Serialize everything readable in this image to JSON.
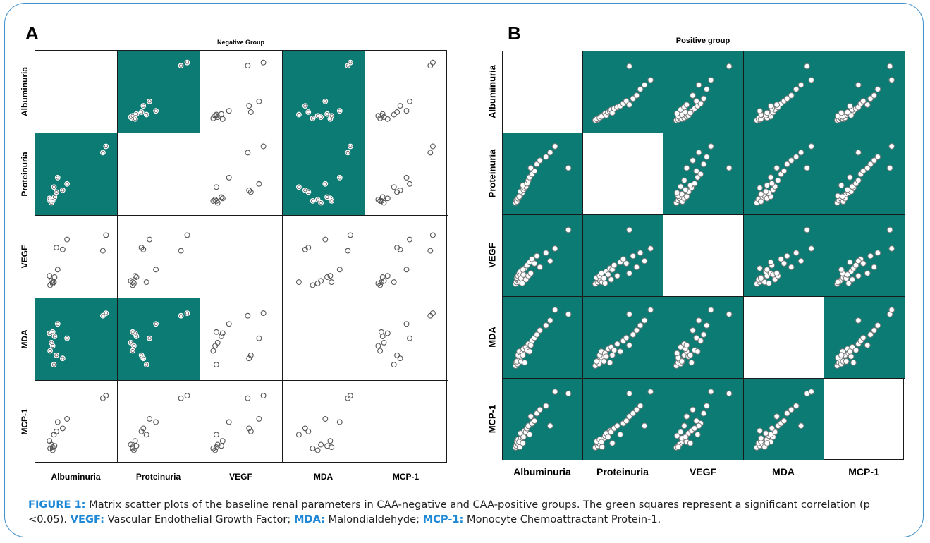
{
  "variables": [
    "Albuminuria",
    "Proteinuria",
    "VEGF",
    "MDA",
    "MCP-1"
  ],
  "colors": {
    "significant_cell": "#0b7b73",
    "frame": "#3e8fcc",
    "caption_highlight": "#1e88d6"
  },
  "caption": {
    "label": "FIGURE 1:",
    "text": "Matrix scatter plots of the baseline renal parameters in CAA-negative and CAA-positive groups. The green squares represent a significant correlation (p <0.05).",
    "abbr1": "VEGF:",
    "def1": "Vascular Endothelial Growth Factor;",
    "abbr2": "MDA:",
    "def2": "Malondialdehyde;",
    "abbr3": "MCP-1:",
    "def3": "Monocyte Chemoattractant Protein-1."
  },
  "chart_data": [
    {
      "type": "scatter",
      "panel": "A",
      "title": "Negative Group",
      "variables": [
        "Albuminuria",
        "Proteinuria",
        "VEGF",
        "MDA",
        "MCP-1"
      ],
      "significant_pairs": [
        [
          "Albuminuria",
          "Proteinuria"
        ],
        [
          "Albuminuria",
          "MDA"
        ],
        [
          "Proteinuria",
          "MDA"
        ]
      ],
      "grid": false,
      "observations": [
        {
          "Albuminuria": 0.08,
          "Proteinuria": 0.08,
          "VEGF": 0.05,
          "MDA": 0.32,
          "MCP-1": 0.08
        },
        {
          "Albuminuria": 0.1,
          "Proteinuria": 0.05,
          "VEGF": 0.12,
          "MDA": 0.45,
          "MCP-1": 0.14
        },
        {
          "Albuminuria": 0.12,
          "Proteinuria": 0.1,
          "VEGF": 0.08,
          "MDA": 0.4,
          "MCP-1": 0.05
        },
        {
          "Albuminuria": 0.07,
          "Proteinuria": 0.12,
          "VEGF": 0.2,
          "MDA": 0.6,
          "MCP-1": 0.2
        },
        {
          "Albuminuria": 0.15,
          "Proteinuria": 0.14,
          "VEGF": 0.18,
          "MDA": 0.55,
          "MCP-1": 0.12
        },
        {
          "Albuminuria": 0.12,
          "Proteinuria": 0.08,
          "VEGF": 0.1,
          "MDA": 0.62,
          "MCP-1": 0.1
        },
        {
          "Albuminuria": 0.18,
          "Proteinuria": 0.22,
          "VEGF": 0.65,
          "MDA": 0.25,
          "MCP-1": 0.35
        },
        {
          "Albuminuria": 0.28,
          "Proteinuria": 0.25,
          "VEGF": 0.62,
          "MDA": 0.2,
          "MCP-1": 0.4
        },
        {
          "Albuminuria": 0.14,
          "Proteinuria": 0.3,
          "VEGF": 0.1,
          "MDA": 0.1,
          "MCP-1": 0.3
        },
        {
          "Albuminuria": 0.35,
          "Proteinuria": 0.35,
          "VEGF": 0.78,
          "MDA": 0.52,
          "MCP-1": 0.55
        },
        {
          "Albuminuria": 0.2,
          "Proteinuria": 0.45,
          "VEGF": 0.3,
          "MDA": 0.75,
          "MCP-1": 0.5
        },
        {
          "Albuminuria": 0.92,
          "Proteinuria": 0.85,
          "VEGF": 0.6,
          "MDA": 0.88,
          "MCP-1": 0.88
        },
        {
          "Albuminuria": 0.97,
          "Proteinuria": 0.95,
          "VEGF": 0.85,
          "MDA": 0.92,
          "MCP-1": 0.92
        }
      ]
    },
    {
      "type": "scatter",
      "panel": "B",
      "title": "Positive group",
      "variables": [
        "Albuminuria",
        "Proteinuria",
        "VEGF",
        "MDA",
        "MCP-1"
      ],
      "significant_pairs": [
        [
          "Albuminuria",
          "Proteinuria"
        ],
        [
          "Albuminuria",
          "VEGF"
        ],
        [
          "Albuminuria",
          "MDA"
        ],
        [
          "Albuminuria",
          "MCP-1"
        ],
        [
          "Proteinuria",
          "VEGF"
        ],
        [
          "Proteinuria",
          "MDA"
        ],
        [
          "Proteinuria",
          "MCP-1"
        ],
        [
          "VEGF",
          "MDA"
        ],
        [
          "VEGF",
          "MCP-1"
        ],
        [
          "MDA",
          "MCP-1"
        ]
      ],
      "grid": false,
      "observations": [
        {
          "Albuminuria": 0.05,
          "Proteinuria": 0.04,
          "VEGF": 0.05,
          "MDA": 0.05,
          "MCP-1": 0.05
        },
        {
          "Albuminuria": 0.06,
          "Proteinuria": 0.08,
          "VEGF": 0.08,
          "MDA": 0.1,
          "MCP-1": 0.08
        },
        {
          "Albuminuria": 0.08,
          "Proteinuria": 0.1,
          "VEGF": 0.12,
          "MDA": 0.08,
          "MCP-1": 0.12
        },
        {
          "Albuminuria": 0.1,
          "Proteinuria": 0.12,
          "VEGF": 0.1,
          "MDA": 0.15,
          "MCP-1": 0.1
        },
        {
          "Albuminuria": 0.07,
          "Proteinuria": 0.06,
          "VEGF": 0.15,
          "MDA": 0.12,
          "MCP-1": 0.15
        },
        {
          "Albuminuria": 0.12,
          "Proteinuria": 0.15,
          "VEGF": 0.08,
          "MDA": 0.18,
          "MCP-1": 0.06
        },
        {
          "Albuminuria": 0.09,
          "Proteinuria": 0.11,
          "VEGF": 0.18,
          "MDA": 0.22,
          "MCP-1": 0.18
        },
        {
          "Albuminuria": 0.14,
          "Proteinuria": 0.18,
          "VEGF": 0.14,
          "MDA": 0.12,
          "MCP-1": 0.2
        },
        {
          "Albuminuria": 0.11,
          "Proteinuria": 0.14,
          "VEGF": 0.22,
          "MDA": 0.28,
          "MCP-1": 0.14
        },
        {
          "Albuminuria": 0.16,
          "Proteinuria": 0.2,
          "VEGF": 0.06,
          "MDA": 0.25,
          "MCP-1": 0.24
        },
        {
          "Albuminuria": 0.13,
          "Proteinuria": 0.22,
          "VEGF": 0.25,
          "MDA": 0.2,
          "MCP-1": 0.28
        },
        {
          "Albuminuria": 0.18,
          "Proteinuria": 0.25,
          "VEGF": 0.2,
          "MDA": 0.32,
          "MCP-1": 0.22
        },
        {
          "Albuminuria": 0.2,
          "Proteinuria": 0.28,
          "VEGF": 0.3,
          "MDA": 0.1,
          "MCP-1": 0.32
        },
        {
          "Albuminuria": 0.22,
          "Proteinuria": 0.3,
          "VEGF": 0.12,
          "MDA": 0.35,
          "MCP-1": 0.3
        },
        {
          "Albuminuria": 0.17,
          "Proteinuria": 0.32,
          "VEGF": 0.28,
          "MDA": 0.22,
          "MCP-1": 0.12
        },
        {
          "Albuminuria": 0.24,
          "Proteinuria": 0.35,
          "VEGF": 0.35,
          "MDA": 0.3,
          "MCP-1": 0.36
        },
        {
          "Albuminuria": 0.26,
          "Proteinuria": 0.4,
          "VEGF": 0.18,
          "MDA": 0.4,
          "MCP-1": 0.4
        },
        {
          "Albuminuria": 0.28,
          "Proteinuria": 0.45,
          "VEGF": 0.4,
          "MDA": 0.28,
          "MCP-1": 0.26
        },
        {
          "Albuminuria": 0.32,
          "Proteinuria": 0.5,
          "VEGF": 0.45,
          "MDA": 0.45,
          "MCP-1": 0.44
        },
        {
          "Albuminuria": 0.36,
          "Proteinuria": 0.55,
          "VEGF": 0.38,
          "MDA": 0.5,
          "MCP-1": 0.48
        },
        {
          "Albuminuria": 0.3,
          "Proteinuria": 0.6,
          "VEGF": 0.22,
          "MDA": 0.38,
          "MCP-1": 0.55
        },
        {
          "Albuminuria": 0.4,
          "Proteinuria": 0.66,
          "VEGF": 0.5,
          "MDA": 0.55,
          "MCP-1": 0.6
        },
        {
          "Albuminuria": 0.45,
          "Proteinuria": 0.72,
          "VEGF": 0.32,
          "MDA": 0.62,
          "MCP-1": 0.66
        },
        {
          "Albuminuria": 0.55,
          "Proteinuria": 0.78,
          "VEGF": 0.55,
          "MDA": 0.7,
          "MCP-1": 0.72
        },
        {
          "Albuminuria": 0.62,
          "Proteinuria": 0.85,
          "VEGF": 0.42,
          "MDA": 0.78,
          "MCP-1": 0.4
        },
        {
          "Albuminuria": 0.92,
          "Proteinuria": 0.6,
          "VEGF": 0.92,
          "MDA": 0.88,
          "MCP-1": 0.92
        },
        {
          "Albuminuria": 0.7,
          "Proteinuria": 0.95,
          "VEGF": 0.62,
          "MDA": 0.95,
          "MCP-1": 0.95
        }
      ]
    }
  ]
}
